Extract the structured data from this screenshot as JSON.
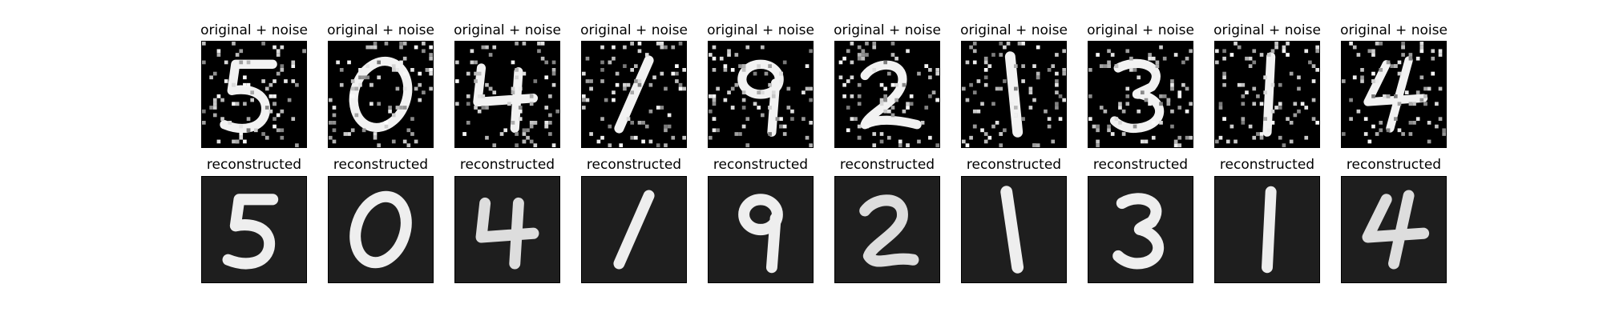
{
  "figure": {
    "rows": [
      {
        "row_id": "noisy",
        "panels": [
          {
            "title": "original + noise",
            "digit_name": "digit-5-noisy-image"
          },
          {
            "title": "original + noise",
            "digit_name": "digit-0-noisy-image"
          },
          {
            "title": "original + noise",
            "digit_name": "digit-4-noisy-image"
          },
          {
            "title": "original + noise",
            "digit_name": "digit-1-noisy-image"
          },
          {
            "title": "original + noise",
            "digit_name": "digit-9-noisy-image"
          },
          {
            "title": "original + noise",
            "digit_name": "digit-2-noisy-image"
          },
          {
            "title": "original + noise",
            "digit_name": "digit-1-noisy-image"
          },
          {
            "title": "original + noise",
            "digit_name": "digit-3-noisy-image"
          },
          {
            "title": "original + noise",
            "digit_name": "digit-1-noisy-image"
          },
          {
            "title": "original + noise",
            "digit_name": "digit-4-noisy-image"
          }
        ]
      },
      {
        "row_id": "reconstructed",
        "panels": [
          {
            "title": "reconstructed",
            "digit_name": "digit-5-reconstructed-image"
          },
          {
            "title": "reconstructed",
            "digit_name": "digit-0-reconstructed-image"
          },
          {
            "title": "reconstructed",
            "digit_name": "digit-4-reconstructed-image"
          },
          {
            "title": "reconstructed",
            "digit_name": "digit-1-reconstructed-image"
          },
          {
            "title": "reconstructed",
            "digit_name": "digit-9-reconstructed-image"
          },
          {
            "title": "reconstructed",
            "digit_name": "digit-2-reconstructed-image"
          },
          {
            "title": "reconstructed",
            "digit_name": "digit-1-reconstructed-image"
          },
          {
            "title": "reconstructed",
            "digit_name": "digit-3-reconstructed-image"
          },
          {
            "title": "reconstructed",
            "digit_name": "digit-1-reconstructed-image"
          },
          {
            "title": "reconstructed",
            "digit_name": "digit-4-reconstructed-image"
          }
        ]
      }
    ],
    "colors": {
      "background": "#ffffff",
      "noisy_background": "#000000",
      "reconstructed_background": "#1e1e1e",
      "stroke": "#f2f2f2"
    }
  }
}
